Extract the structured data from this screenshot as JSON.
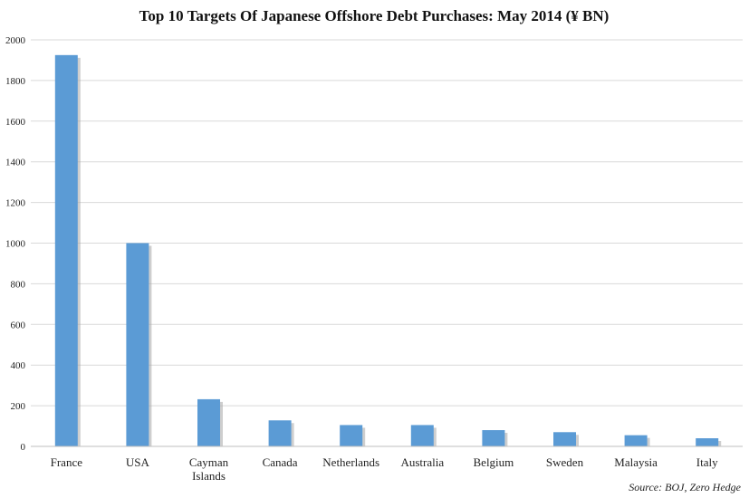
{
  "chart_data": {
    "type": "bar",
    "title": "Top 10 Targets Of  Japanese Offshore Debt Purchases: May 2014 (¥ BN)",
    "categories": [
      "France",
      "USA",
      "Cayman Islands",
      "Canada",
      "Netherlands",
      "Australia",
      "Belgium",
      "Sweden",
      "Malaysia",
      "Italy"
    ],
    "values": [
      1925,
      1000,
      232,
      128,
      105,
      105,
      80,
      70,
      55,
      40
    ],
    "yticks": [
      "0",
      "200",
      "400",
      "600",
      "800",
      "1000",
      "1200",
      "1400",
      "1600",
      "1800",
      "2000"
    ],
    "ylim": [
      0,
      2000
    ],
    "xlabel": "",
    "ylabel": "",
    "grid": true,
    "bar_color": "#5b9bd5",
    "bar_shadow_color": "#a6a6a6",
    "source": "Source: BOJ, Zero Hedge"
  }
}
